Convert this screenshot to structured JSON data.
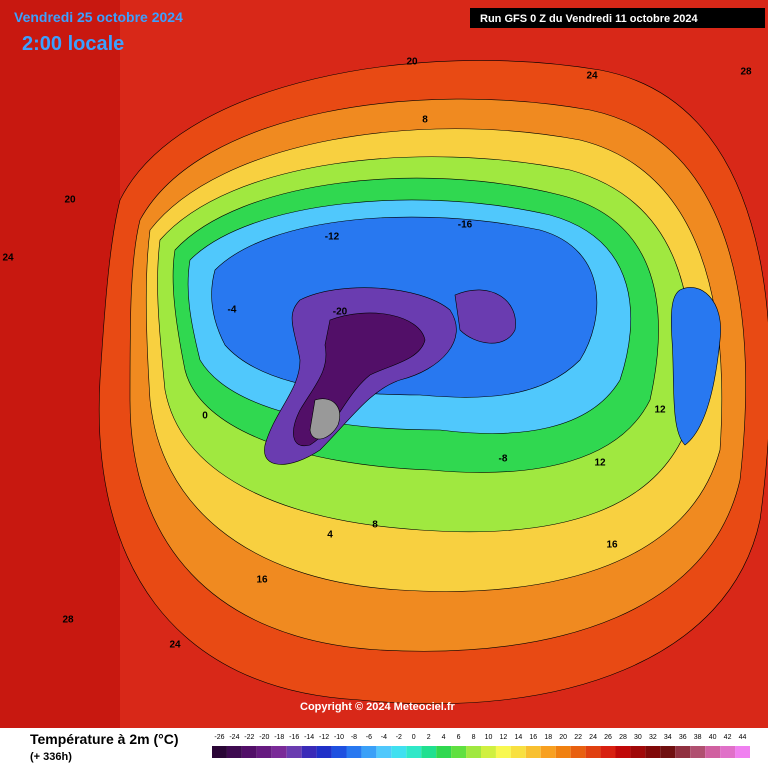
{
  "header": {
    "date": "Vendredi 25 octobre 2024",
    "time": "2:00 locale",
    "run": "Run GFS 0 Z du Vendredi 11 octobre 2024",
    "copyright": "Copyright © 2024 Meteociel.fr"
  },
  "map_labels": [
    20,
    24,
    28,
    8,
    -12,
    -16,
    -20,
    0,
    4,
    12,
    16,
    24,
    28,
    24,
    -8,
    -4,
    20,
    16,
    12,
    8
  ],
  "legend": {
    "title": "Température à 2m (°C)",
    "subtitle": "(+ 336h)",
    "ticks": [
      -26,
      -24,
      -22,
      -20,
      -18,
      -16,
      -14,
      -12,
      -10,
      -8,
      -6,
      -4,
      -2,
      0,
      2,
      4,
      6,
      8,
      10,
      12,
      14,
      16,
      18,
      20,
      22,
      24,
      26,
      28,
      30,
      32,
      34,
      36,
      38,
      40,
      42,
      44
    ],
    "colors": [
      "#2a0636",
      "#3e0a50",
      "#520f68",
      "#661a80",
      "#7a2a98",
      "#6a3cb0",
      "#3a2ab8",
      "#2030c8",
      "#1e50e0",
      "#2878f0",
      "#3aa0f8",
      "#50c8fc",
      "#40e0f0",
      "#30e8c8",
      "#20e090",
      "#30d850",
      "#60e040",
      "#a0e840",
      "#d0f040",
      "#f8f850",
      "#f8e040",
      "#f8c030",
      "#f8a020",
      "#f08010",
      "#e86010",
      "#e04010",
      "#d82010",
      "#c00808",
      "#a00808",
      "#800808",
      "#701010",
      "#903040",
      "#b05070",
      "#d060a0",
      "#e070c8",
      "#f080f0"
    ]
  }
}
